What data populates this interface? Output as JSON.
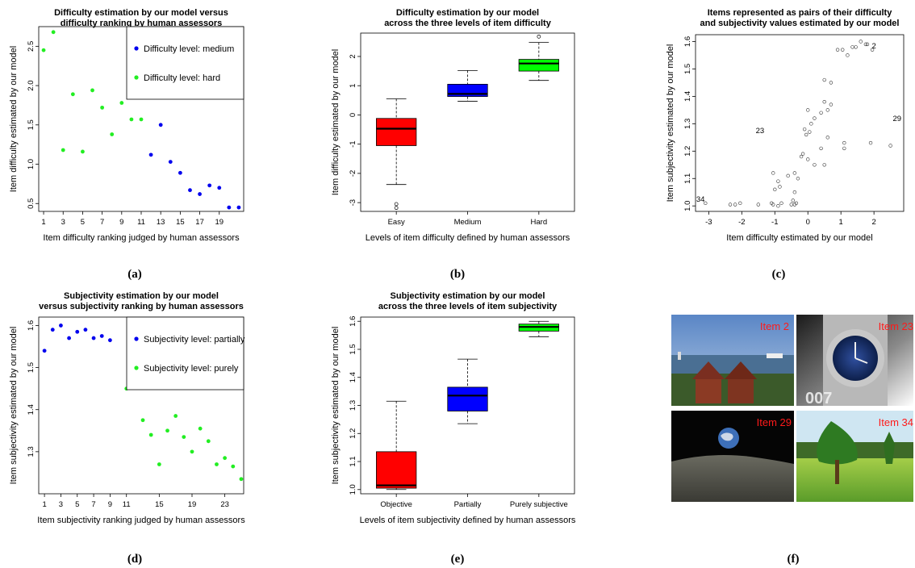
{
  "chart_data": [
    {
      "panel": "a",
      "type": "scatter",
      "title": [
        "Difficulty estimation by our model versus",
        "difficulty ranking by human assessors"
      ],
      "xlabel": "Item difficulty ranking judged by human assessors",
      "ylabel": "Item difficulty estimated by our model",
      "xlim": [
        0.5,
        21.5
      ],
      "ylim": [
        0.4,
        2.75
      ],
      "xticks": [
        "1",
        "3",
        "5",
        "7",
        "9",
        "11",
        "13",
        "15",
        "17",
        "19"
      ],
      "yticks": [
        "0.5",
        "1.0",
        "1.5",
        "2.0",
        "2.5"
      ],
      "legend_position": "top-right",
      "series": [
        {
          "name": "Difficulty level: medium",
          "color": "#0000ee",
          "x": [
            12,
            13,
            14,
            15,
            16,
            17,
            18,
            19,
            20,
            21
          ],
          "y": [
            1.12,
            1.5,
            1.03,
            0.89,
            0.67,
            0.62,
            0.73,
            0.7,
            0.45,
            0.45
          ]
        },
        {
          "name": "Difficulty level: hard",
          "color": "#22ee22",
          "x": [
            1,
            2,
            3,
            4,
            5,
            6,
            7,
            8,
            9,
            10,
            11
          ],
          "y": [
            2.45,
            2.68,
            1.18,
            1.89,
            1.16,
            1.94,
            1.72,
            1.38,
            1.78,
            1.57,
            1.57
          ]
        }
      ]
    },
    {
      "panel": "b",
      "type": "box",
      "title": [
        "Difficulty estimation by our model",
        "across the three levels of item difficulty"
      ],
      "xlabel": "Levels of item difficulty defined by human assessors",
      "ylabel": "Item difficulty estimated by our model",
      "ylim": [
        -3.3,
        2.8
      ],
      "yticks": [
        "-3",
        "-2",
        "-1",
        "0",
        "1",
        "2"
      ],
      "categories": [
        "Easy",
        "Medium",
        "Hard"
      ],
      "boxes": [
        {
          "color": "#ff0000",
          "lower_whisker": -2.38,
          "q1": -1.05,
          "median": -0.47,
          "q3": -0.12,
          "upper_whisker": 0.55,
          "outliers": [
            -3.05,
            -3.18
          ]
        },
        {
          "color": "#0000ff",
          "lower_whisker": 0.47,
          "q1": 0.63,
          "median": 0.72,
          "q3": 1.05,
          "upper_whisker": 1.52,
          "outliers": []
        },
        {
          "color": "#00ff00",
          "lower_whisker": 1.18,
          "q1": 1.5,
          "median": 1.76,
          "q3": 1.9,
          "upper_whisker": 2.48,
          "outliers": [
            2.68
          ]
        }
      ]
    },
    {
      "panel": "c",
      "type": "scatter",
      "title": [
        "Items represented as pairs of their difficulty",
        "and subjectivity values estimated by our model"
      ],
      "xlabel": "Item difficulty estimated by our model",
      "ylabel": "Item subjectivity estimated by our model",
      "xlim": [
        -3.4,
        2.9
      ],
      "ylim": [
        0.98,
        1.625
      ],
      "xticks": [
        "-3",
        "-2",
        "-1",
        "0",
        "1",
        "2"
      ],
      "yticks": [
        "1.0",
        "1.1",
        "1.2",
        "1.3",
        "1.4",
        "1.5",
        "1.6"
      ],
      "points": {
        "x": [
          -3.1,
          -2.35,
          -2.2,
          -2.05,
          -1.5,
          -1.1,
          -1.05,
          -0.9,
          -0.8,
          -0.5,
          -0.45,
          -0.4,
          -0.35,
          -1.0,
          -0.9,
          -0.6,
          -0.4,
          -0.3,
          -1.05,
          -0.85,
          -0.4,
          -0.15,
          0.0,
          0.2,
          0.4,
          0.6,
          1.1,
          1.1,
          1.9,
          2.5,
          0.5,
          -0.2,
          -0.1,
          0.1,
          0.2,
          0.4,
          0.5,
          0.6,
          0.7,
          0.5,
          0.7,
          0.0,
          0.9,
          1.05,
          1.2,
          1.35,
          1.45,
          1.6,
          1.75,
          1.8,
          1.95,
          -0.05,
          0.05
        ],
        "y": [
          1.01,
          1.005,
          1.005,
          1.01,
          1.005,
          1.01,
          1.005,
          1.0,
          1.01,
          1.005,
          1.02,
          1.005,
          1.01,
          1.06,
          1.09,
          1.11,
          1.12,
          1.1,
          1.12,
          1.07,
          1.05,
          1.19,
          1.17,
          1.15,
          1.21,
          1.25,
          1.21,
          1.23,
          1.23,
          1.22,
          1.15,
          1.18,
          1.28,
          1.3,
          1.32,
          1.34,
          1.38,
          1.35,
          1.37,
          1.46,
          1.45,
          1.35,
          1.57,
          1.57,
          1.55,
          1.58,
          1.58,
          1.6,
          1.59,
          1.59,
          1.57,
          1.26,
          1.27
        ]
      },
      "labels": [
        {
          "text": "34",
          "x": -3.25,
          "y": 1.015,
          "color": "#f08020"
        },
        {
          "text": "23",
          "x": -1.45,
          "y": 1.265,
          "color": "#1a1ae6"
        },
        {
          "text": "2",
          "x": 2.0,
          "y": 1.575,
          "color": "#8a1ad6"
        },
        {
          "text": "29",
          "x": 2.7,
          "y": 1.31,
          "color": "#ee2222"
        }
      ]
    },
    {
      "panel": "d",
      "type": "scatter",
      "title": [
        "Subjectivity estimation by our model",
        "versus subjectivity ranking by human assessors"
      ],
      "xlabel": "Item subjectivity ranking judged by human assessors",
      "ylabel": "Item subjectivity estimated by our model",
      "xlim": [
        0.3,
        25.3
      ],
      "ylim": [
        1.2,
        1.62
      ],
      "xticks": [
        "1",
        "3",
        "5",
        "7",
        "9",
        "11",
        "15",
        "19",
        "23"
      ],
      "yticks": [
        "1.3",
        "1.4",
        "1.5",
        "1.6"
      ],
      "legend_position": "top-right",
      "series": [
        {
          "name": "Subjectivity level: partially",
          "color": "#0000ee",
          "x": [
            1,
            2,
            3,
            4,
            5,
            6,
            7,
            8,
            9
          ],
          "y": [
            1.54,
            1.59,
            1.6,
            1.57,
            1.585,
            1.59,
            1.57,
            1.575,
            1.565
          ]
        },
        {
          "name": "Subjectivity level: purely",
          "color": "#22ee22",
          "x": [
            11,
            12,
            13,
            14,
            15,
            16,
            17,
            18,
            19,
            20,
            21,
            22,
            23,
            24,
            25
          ],
          "y": [
            1.45,
            1.46,
            1.375,
            1.34,
            1.27,
            1.35,
            1.385,
            1.335,
            1.3,
            1.355,
            1.325,
            1.27,
            1.285,
            1.265,
            1.235
          ]
        }
      ]
    },
    {
      "panel": "e",
      "type": "box",
      "title": [
        "Subjectivity estimation by our model",
        "across the three levels of item subjectivity"
      ],
      "xlabel": "Levels of item subjectivity defined by human assessors",
      "ylabel": "Item subjectivity estimated by our model",
      "ylim": [
        0.985,
        1.615
      ],
      "yticks": [
        "1.0",
        "1.1",
        "1.2",
        "1.3",
        "1.4",
        "1.5",
        "1.6"
      ],
      "categories": [
        "Objective",
        "Partially",
        "Purely subjective"
      ],
      "boxes": [
        {
          "color": "#ff0000",
          "lower_whisker": 1.0,
          "q1": 1.005,
          "median": 1.015,
          "q3": 1.135,
          "upper_whisker": 1.315,
          "outliers": []
        },
        {
          "color": "#0000ff",
          "lower_whisker": 1.235,
          "q1": 1.28,
          "median": 1.335,
          "q3": 1.365,
          "upper_whisker": 1.465,
          "outliers": []
        },
        {
          "color": "#00ff00",
          "lower_whisker": 1.545,
          "q1": 1.565,
          "median": 1.58,
          "q3": 1.59,
          "upper_whisker": 1.6,
          "outliers": []
        }
      ]
    }
  ],
  "subfigure_labels": [
    "(a)",
    "(b)",
    "(c)",
    "(d)",
    "(e)",
    "(f)"
  ],
  "photos": [
    {
      "caption": "Item 2",
      "scene": "harbor"
    },
    {
      "caption": "Item 23",
      "scene": "watch"
    },
    {
      "caption": "Item 29",
      "scene": "earthrise"
    },
    {
      "caption": "Item 34",
      "scene": "garden"
    }
  ],
  "photo_text": "007"
}
